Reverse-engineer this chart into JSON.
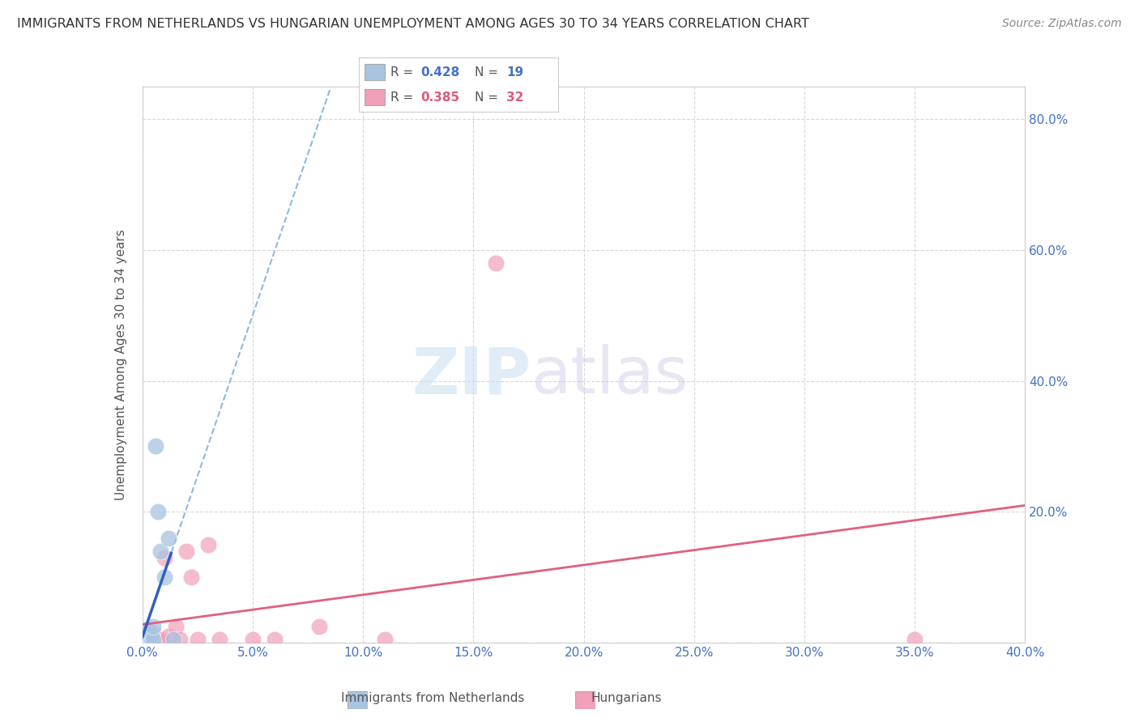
{
  "title": "IMMIGRANTS FROM NETHERLANDS VS HUNGARIAN UNEMPLOYMENT AMONG AGES 30 TO 34 YEARS CORRELATION CHART",
  "source": "Source: ZipAtlas.com",
  "ylabel": "Unemployment Among Ages 30 to 34 years",
  "xlim": [
    0.0,
    0.4
  ],
  "ylim": [
    0.0,
    0.85
  ],
  "xticks": [
    0.0,
    0.05,
    0.1,
    0.15,
    0.2,
    0.25,
    0.3,
    0.35,
    0.4
  ],
  "yticks": [
    0.0,
    0.2,
    0.4,
    0.6,
    0.8
  ],
  "xtick_labels": [
    "0.0%",
    "5.0%",
    "10.0%",
    "15.0%",
    "20.0%",
    "25.0%",
    "30.0%",
    "35.0%",
    "40.0%"
  ],
  "ytick_labels_left": [
    "",
    "",
    "",
    "",
    ""
  ],
  "ytick_labels_right": [
    "",
    "20.0%",
    "40.0%",
    "60.0%",
    "80.0%"
  ],
  "background_color": "#ffffff",
  "color_blue": "#a8c4e0",
  "color_pink": "#f0a0b8",
  "color_blue_line": "#3060c0",
  "color_blue_dashed": "#90b8e0",
  "color_pink_line": "#e06080",
  "color_blue_text": "#4472c4",
  "color_pink_text": "#e05a7a",
  "grid_color": "#d8d8d8",
  "nl_x": [
    0.001,
    0.001,
    0.001,
    0.001,
    0.002,
    0.002,
    0.002,
    0.003,
    0.003,
    0.004,
    0.004,
    0.005,
    0.005,
    0.006,
    0.007,
    0.008,
    0.01,
    0.012,
    0.014
  ],
  "nl_y": [
    0.005,
    0.01,
    0.015,
    0.02,
    0.005,
    0.008,
    0.015,
    0.01,
    0.018,
    0.005,
    0.012,
    0.005,
    0.025,
    0.3,
    0.2,
    0.14,
    0.1,
    0.16,
    0.005
  ],
  "hu_x": [
    0.001,
    0.001,
    0.001,
    0.001,
    0.002,
    0.002,
    0.002,
    0.002,
    0.003,
    0.003,
    0.004,
    0.004,
    0.005,
    0.005,
    0.006,
    0.007,
    0.008,
    0.01,
    0.012,
    0.015,
    0.017,
    0.02,
    0.022,
    0.025,
    0.03,
    0.035,
    0.05,
    0.06,
    0.08,
    0.11,
    0.16,
    0.35
  ],
  "hu_y": [
    0.005,
    0.01,
    0.015,
    0.02,
    0.005,
    0.008,
    0.012,
    0.02,
    0.005,
    0.015,
    0.005,
    0.01,
    0.005,
    0.015,
    0.005,
    0.005,
    0.005,
    0.13,
    0.01,
    0.025,
    0.005,
    0.14,
    0.1,
    0.005,
    0.15,
    0.005,
    0.005,
    0.005,
    0.025,
    0.005,
    0.58,
    0.005
  ],
  "watermark_zip": "ZIP",
  "watermark_atlas": "atlas"
}
